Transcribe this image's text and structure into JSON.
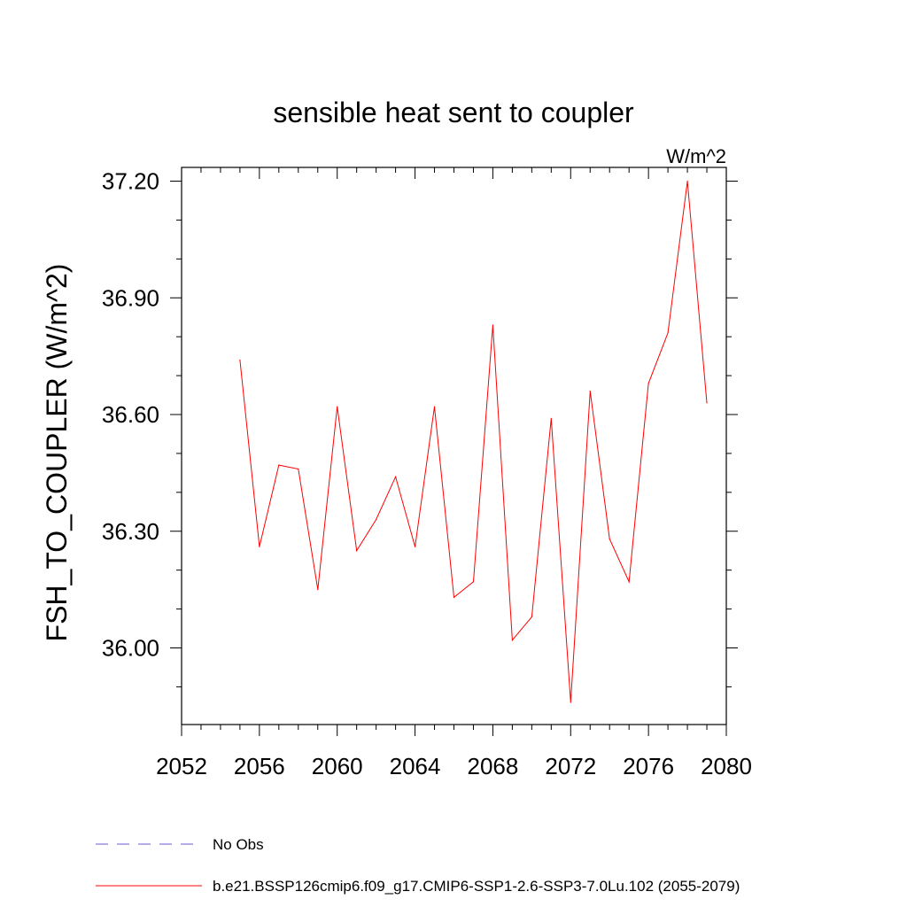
{
  "chart_data": {
    "type": "line",
    "title": "sensible heat sent to coupler",
    "units_label": "W/m^2",
    "ylabel": "FSH_TO_COUPLER  (W/m^2)",
    "xlabel": "",
    "xlim": [
      2052,
      2080
    ],
    "ylim": [
      35.86,
      37.24
    ],
    "x_ticks": [
      2052,
      2056,
      2060,
      2064,
      2068,
      2072,
      2076,
      2080
    ],
    "x_tick_labels": [
      "2052",
      "2056",
      "2060",
      "2064",
      "2068",
      "2072",
      "2076",
      "2080"
    ],
    "y_ticks": [
      36.0,
      36.3,
      36.6,
      36.9,
      37.2
    ],
    "y_tick_labels": [
      "36.00",
      "36.30",
      "36.60",
      "36.90",
      "37.20"
    ],
    "y_minor_step": 0.1,
    "x_minor_step": 1,
    "grid": false,
    "legend_position": "bottom-left",
    "series": [
      {
        "name": "b.e21.BSSP126cmip6.f09_g17.CMIP6-SSP1-2.6-SSP3-7.0Lu.102 (2055-2079)",
        "color": "#ff0000",
        "dash": "solid",
        "x": [
          2055,
          2056,
          2057,
          2058,
          2059,
          2060,
          2061,
          2062,
          2063,
          2064,
          2065,
          2066,
          2067,
          2068,
          2069,
          2070,
          2071,
          2072,
          2073,
          2074,
          2075,
          2076,
          2077,
          2078,
          2079
        ],
        "values": [
          36.74,
          36.26,
          36.47,
          36.46,
          36.15,
          36.62,
          36.25,
          36.33,
          36.44,
          36.26,
          36.62,
          36.13,
          36.17,
          36.83,
          36.02,
          36.08,
          36.59,
          35.86,
          36.66,
          36.28,
          36.17,
          36.68,
          36.81,
          37.2,
          36.63
        ]
      }
    ],
    "legend": [
      {
        "label": "No Obs",
        "color": "#6a5acd",
        "dash": "dashed"
      },
      {
        "label": "b.e21.BSSP126cmip6.f09_g17.CMIP6-SSP1-2.6-SSP3-7.0Lu.102 (2055-2079)",
        "color": "#ff0000",
        "dash": "solid"
      }
    ]
  }
}
